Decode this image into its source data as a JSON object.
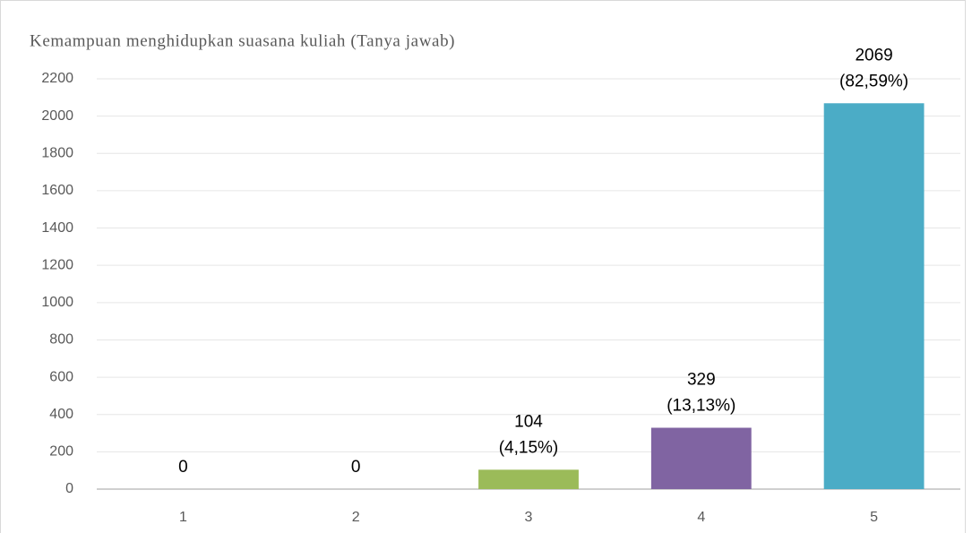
{
  "chart_data": {
    "type": "bar",
    "title": "Kemampuan menghidupkan suasana kuliah (Tanya jawab)",
    "categories": [
      "1",
      "2",
      "3",
      "4",
      "5"
    ],
    "values": [
      0,
      0,
      104,
      329,
      2069
    ],
    "value_labels": [
      [
        "0"
      ],
      [
        "0"
      ],
      [
        "104",
        "(4,15%)"
      ],
      [
        "329",
        "(13,13%)"
      ],
      [
        "2069",
        "(82,59%)"
      ]
    ],
    "colors": [
      "#4f81bd",
      "#c0504d",
      "#9bbb59",
      "#8064a2",
      "#4bacc6"
    ],
    "ylim": [
      0,
      2200
    ],
    "yticks": [
      0,
      200,
      400,
      600,
      800,
      1000,
      1200,
      1400,
      1600,
      1800,
      2000,
      2200
    ],
    "grid": true
  }
}
